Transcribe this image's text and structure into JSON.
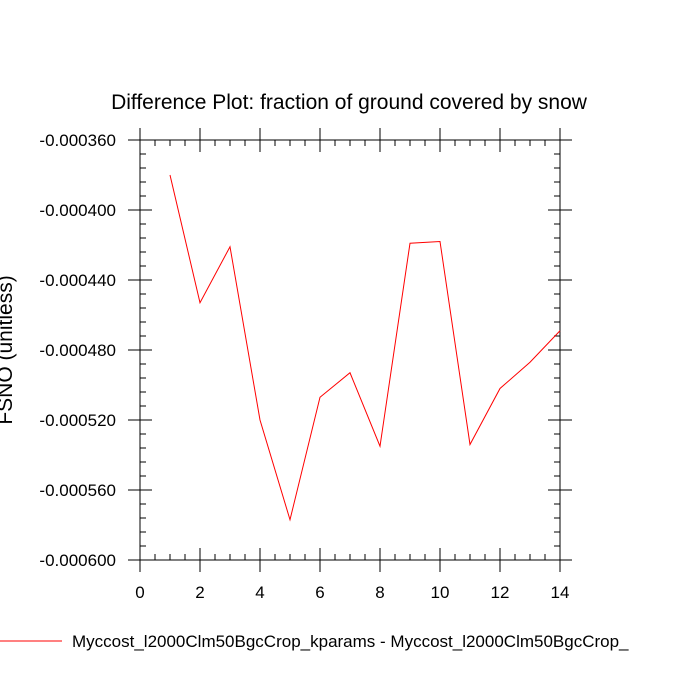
{
  "chart_data": {
    "type": "line",
    "title": "Difference Plot: fraction of ground covered by snow",
    "xlabel": "",
    "ylabel": "FSNO  (unitless)",
    "xlim": [
      0,
      14
    ],
    "ylim": [
      -0.0006,
      -0.00036
    ],
    "x_ticks": [
      0,
      2,
      4,
      6,
      8,
      10,
      12,
      14
    ],
    "x_tick_labels": [
      "0",
      "2",
      "4",
      "6",
      "8",
      "10",
      "12",
      "14"
    ],
    "y_ticks": [
      -0.00036,
      -0.0004,
      -0.00044,
      -0.00048,
      -0.00052,
      -0.00056,
      -0.0006
    ],
    "y_tick_labels": [
      "-0.000360",
      "-0.000400",
      "-0.000440",
      "-0.000480",
      "-0.000520",
      "-0.000560",
      "-0.000600"
    ],
    "grid": false,
    "legend_position": "bottom",
    "series": [
      {
        "name": "Myccost_l2000Clm50BgcCrop_kparams - Myccost_l2000Clm50BgcCrop_",
        "color": "#ff0000",
        "x": [
          1,
          2,
          3,
          4,
          5,
          6,
          7,
          8,
          9,
          10,
          11,
          12,
          13,
          14
        ],
        "y": [
          -0.00038,
          -0.000453,
          -0.000421,
          -0.00052,
          -0.000577,
          -0.000507,
          -0.000493,
          -0.000535,
          -0.000419,
          -0.000418,
          -0.000534,
          -0.000502,
          -0.000487,
          -0.000469
        ]
      }
    ]
  }
}
